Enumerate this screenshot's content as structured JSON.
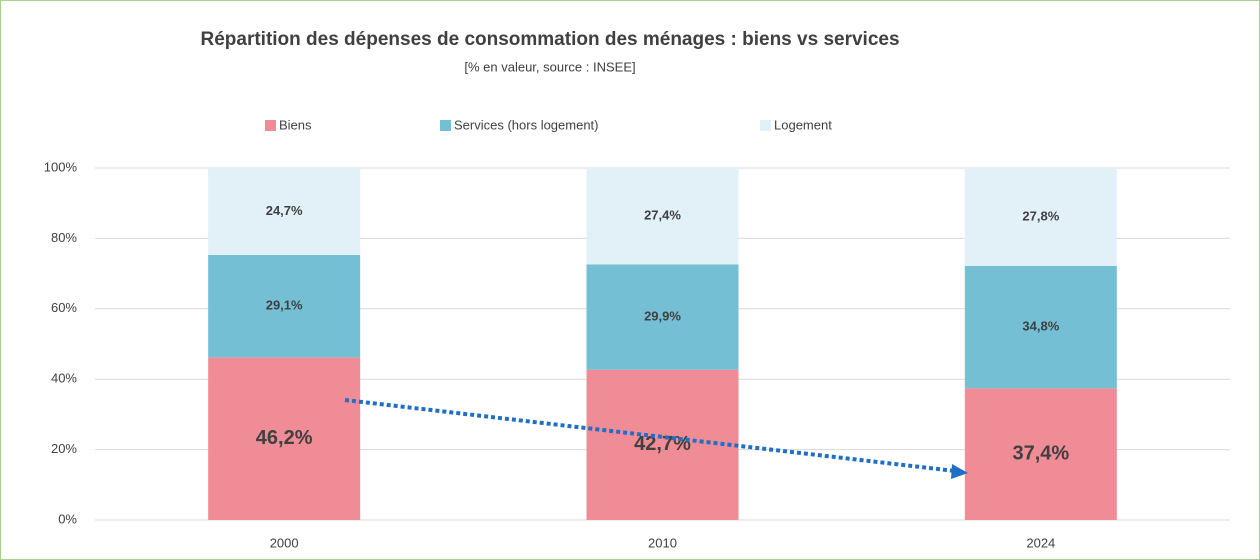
{
  "chart_data": {
    "type": "stacked_bar",
    "title": "Répartition des dépenses de consommation des ménages : biens vs services",
    "subtitle": "[% en valeur, source : INSEE]",
    "categories": [
      "2000",
      "2010",
      "2024"
    ],
    "series": [
      {
        "name": "Biens",
        "color": "#f08c96",
        "values": [
          46.2,
          42.7,
          37.4
        ],
        "value_labels": [
          "46,2%",
          "42,7%",
          "37,4%"
        ]
      },
      {
        "name": "Services (hors logement)",
        "color": "#74bfd4",
        "values": [
          29.1,
          29.9,
          34.8
        ],
        "value_labels": [
          "29,1%",
          "29,9%",
          "34,8%"
        ]
      },
      {
        "name": "Logement",
        "color": "#e2f0f7",
        "values": [
          24.7,
          27.4,
          27.8
        ],
        "value_labels": [
          "24,7%",
          "27,4%",
          "27,8%"
        ]
      }
    ],
    "ylim": [
      0,
      100
    ],
    "yticks": [
      {
        "value": 0,
        "label": "0%"
      },
      {
        "value": 20,
        "label": "20%"
      },
      {
        "value": 40,
        "label": "40%"
      },
      {
        "value": 60,
        "label": "60%"
      },
      {
        "value": 80,
        "label": "80%"
      },
      {
        "value": 100,
        "label": "100%"
      }
    ],
    "grid": true,
    "legend": "top"
  }
}
